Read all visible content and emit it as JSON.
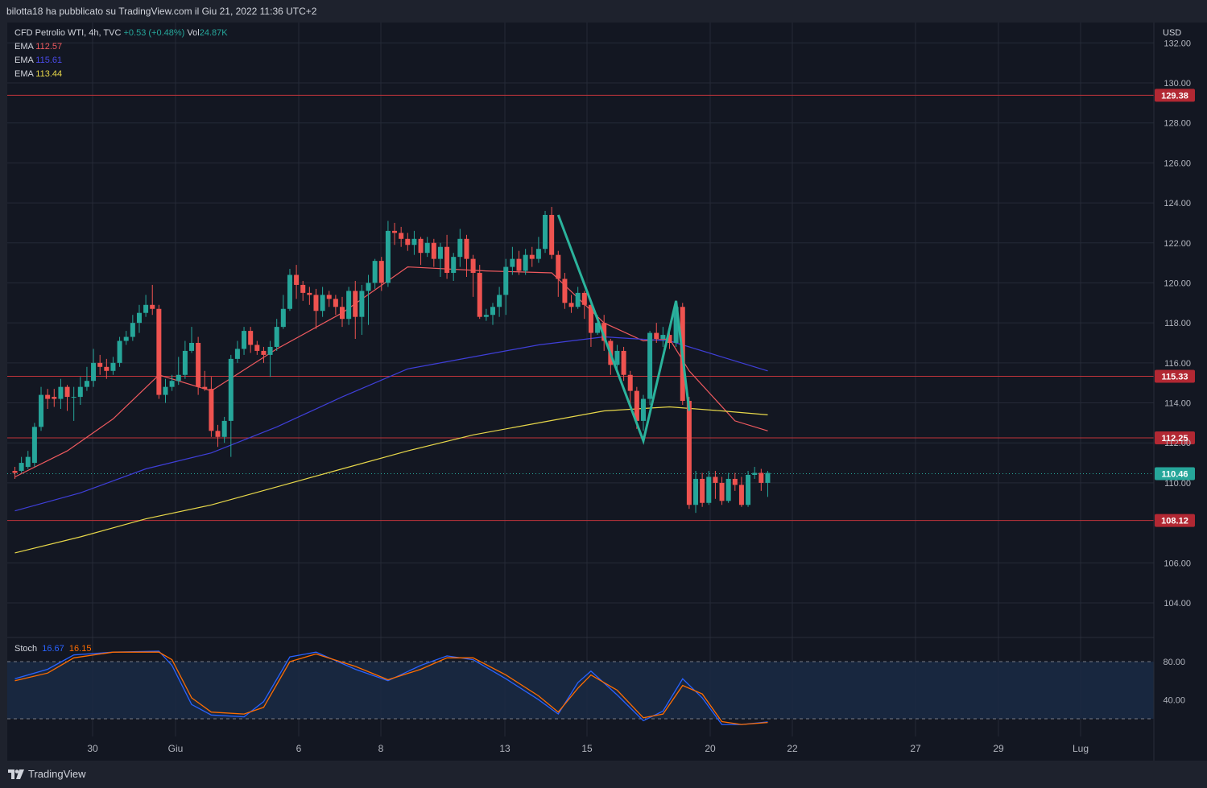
{
  "header": {
    "publish_text": "bilotta18 ha pubblicato su TradingView.com il Giu 21, 2022 11:36 UTC+2"
  },
  "legend": {
    "symbol": "CFD Petrolio WTI, 4h, TVC",
    "change": "+0.53 (+0.48%)",
    "vol_label": "Vol",
    "vol_value": "24.87K",
    "ema1_label": "EMA",
    "ema1_value": "112.57",
    "ema2_label": "EMA",
    "ema2_value": "115.61",
    "ema3_label": "EMA",
    "ema3_value": "113.44"
  },
  "stoch": {
    "label": "Stoch",
    "k": "16.67",
    "d": "16.15"
  },
  "footer": {
    "brand": "TradingView"
  },
  "colors": {
    "bg": "#131722",
    "frame": "#1e222d",
    "grid": "#252a37",
    "up": "#26a69a",
    "down": "#ef5350",
    "ema1": "#f05a5f",
    "ema2": "#3f3fd9",
    "ema3": "#e8d84a",
    "hline": "#c0343b",
    "stoch_k": "#2962ff",
    "stoch_d": "#ff6d00",
    "text": "#b2b5be"
  },
  "chart_data": {
    "type": "candlestick",
    "currency": "USD",
    "y_ticks": [
      "132.00",
      "130.00",
      "128.00",
      "126.00",
      "124.00",
      "122.00",
      "120.00",
      "118.00",
      "116.00",
      "114.00",
      "112.00",
      "110.00",
      "106.00",
      "104.00"
    ],
    "x_ticks": [
      "30",
      "Giu",
      "6",
      "8",
      "13",
      "15",
      "20",
      "22",
      "27",
      "29",
      "Lug"
    ],
    "horizontal_levels": [
      {
        "value": 129.38,
        "label": "129.38"
      },
      {
        "value": 115.33,
        "label": "115.33"
      },
      {
        "value": 112.25,
        "label": "112.25"
      },
      {
        "value": 108.12,
        "label": "108.12"
      }
    ],
    "last_price": {
      "value": 110.46,
      "label": "110.46"
    },
    "candles": [
      [
        110.6,
        110.5,
        110.8,
        110.2
      ],
      [
        110.6,
        111.0,
        111.3,
        110.5
      ],
      [
        110.8,
        111.3,
        111.6,
        110.7
      ],
      [
        111.0,
        112.8,
        113.0,
        110.8
      ],
      [
        112.8,
        114.4,
        114.8,
        112.6
      ],
      [
        114.4,
        114.2,
        114.7,
        113.7
      ],
      [
        114.3,
        114.2,
        114.7,
        113.8
      ],
      [
        114.2,
        114.8,
        115.2,
        113.7
      ],
      [
        114.8,
        114.3,
        114.9,
        113.6
      ],
      [
        114.3,
        114.3,
        114.8,
        113.1
      ],
      [
        114.3,
        114.8,
        115.3,
        113.9
      ],
      [
        114.8,
        115.1,
        115.8,
        114.6
      ],
      [
        115.1,
        116.0,
        116.7,
        114.8
      ],
      [
        116.0,
        115.8,
        116.4,
        115.4
      ],
      [
        115.8,
        115.6,
        116.2,
        115.2
      ],
      [
        115.6,
        116.0,
        116.3,
        115.4
      ],
      [
        116.0,
        117.1,
        117.3,
        115.8
      ],
      [
        117.1,
        117.3,
        117.6,
        116.9
      ],
      [
        117.3,
        118.0,
        118.4,
        117.1
      ],
      [
        118.0,
        118.5,
        118.9,
        117.5
      ],
      [
        118.5,
        118.9,
        119.4,
        118.3
      ],
      [
        118.9,
        118.7,
        119.9,
        118.4
      ],
      [
        118.7,
        114.4,
        118.9,
        114.2
      ],
      [
        114.4,
        114.8,
        115.2,
        114.0
      ],
      [
        114.8,
        115.1,
        115.4,
        114.6
      ],
      [
        115.1,
        115.4,
        116.3,
        114.9
      ],
      [
        115.4,
        116.6,
        117.1,
        115.2
      ],
      [
        116.6,
        117.0,
        117.8,
        116.5
      ],
      [
        117.0,
        114.8,
        117.3,
        114.4
      ],
      [
        114.8,
        114.7,
        115.6,
        114.6
      ],
      [
        114.7,
        112.6,
        115.3,
        112.3
      ],
      [
        112.6,
        112.3,
        112.9,
        111.8
      ],
      [
        112.3,
        113.1,
        113.3,
        112.0
      ],
      [
        113.1,
        116.2,
        116.4,
        111.3
      ],
      [
        116.2,
        116.7,
        117.1,
        116.0
      ],
      [
        116.7,
        117.6,
        117.8,
        116.4
      ],
      [
        117.6,
        116.9,
        117.8,
        116.5
      ],
      [
        116.9,
        116.6,
        117.1,
        116.4
      ],
      [
        116.6,
        116.4,
        116.8,
        116.0
      ],
      [
        116.4,
        116.8,
        117.1,
        115.3
      ],
      [
        116.8,
        117.8,
        118.2,
        116.6
      ],
      [
        117.8,
        118.7,
        119.4,
        117.7
      ],
      [
        118.7,
        120.4,
        120.7,
        118.6
      ],
      [
        120.4,
        119.9,
        120.9,
        119.2
      ],
      [
        119.9,
        119.5,
        120.1,
        119.1
      ],
      [
        119.5,
        119.4,
        119.8,
        118.9
      ],
      [
        119.4,
        118.6,
        119.7,
        117.7
      ],
      [
        118.6,
        119.4,
        119.8,
        118.3
      ],
      [
        119.4,
        119.2,
        119.6,
        118.8
      ],
      [
        119.2,
        118.8,
        119.4,
        118.4
      ],
      [
        118.8,
        118.2,
        119.3,
        117.8
      ],
      [
        118.2,
        119.6,
        119.8,
        117.9
      ],
      [
        119.6,
        118.3,
        120.1,
        117.2
      ],
      [
        118.3,
        119.6,
        119.9,
        117.4
      ],
      [
        119.6,
        120.0,
        120.4,
        117.9
      ],
      [
        120.0,
        121.1,
        121.2,
        119.7
      ],
      [
        121.1,
        120.0,
        121.3,
        119.6
      ],
      [
        120.0,
        122.6,
        123.1,
        119.8
      ],
      [
        122.6,
        122.5,
        123.0,
        121.9
      ],
      [
        122.5,
        122.2,
        122.8,
        121.8
      ],
      [
        122.2,
        121.9,
        122.5,
        121.6
      ],
      [
        121.9,
        122.2,
        122.6,
        121.4
      ],
      [
        122.2,
        121.5,
        122.3,
        120.9
      ],
      [
        121.5,
        122.0,
        122.3,
        121.3
      ],
      [
        122.0,
        121.2,
        122.2,
        120.8
      ],
      [
        121.2,
        121.8,
        122.0,
        120.3
      ],
      [
        121.8,
        120.5,
        122.4,
        120.2
      ],
      [
        120.5,
        121.3,
        121.5,
        120.1
      ],
      [
        121.3,
        122.2,
        122.7,
        120.8
      ],
      [
        122.2,
        121.2,
        122.4,
        120.3
      ],
      [
        121.2,
        120.5,
        121.4,
        119.3
      ],
      [
        120.5,
        118.3,
        120.9,
        118.2
      ],
      [
        118.3,
        118.4,
        118.7,
        118.1
      ],
      [
        118.4,
        118.8,
        119.0,
        117.9
      ],
      [
        118.8,
        119.4,
        119.8,
        118.3
      ],
      [
        119.4,
        120.8,
        121.2,
        118.4
      ],
      [
        120.8,
        121.2,
        121.8,
        120.4
      ],
      [
        121.2,
        120.6,
        121.6,
        120.4
      ],
      [
        120.6,
        121.4,
        121.7,
        120.4
      ],
      [
        121.4,
        121.2,
        121.8,
        120.8
      ],
      [
        121.2,
        121.7,
        122.3,
        121.0
      ],
      [
        121.7,
        123.4,
        123.6,
        121.5
      ],
      [
        123.4,
        121.4,
        123.8,
        121.2
      ],
      [
        121.4,
        120.2,
        121.6,
        119.3
      ],
      [
        120.2,
        119.0,
        120.5,
        118.7
      ],
      [
        119.0,
        118.8,
        119.4,
        118.5
      ],
      [
        118.8,
        119.5,
        119.8,
        118.7
      ],
      [
        119.5,
        118.9,
        119.6,
        118.2
      ],
      [
        118.9,
        117.5,
        119.2,
        116.8
      ],
      [
        117.5,
        118.0,
        118.4,
        117.4
      ],
      [
        118.0,
        117.1,
        118.4,
        116.6
      ],
      [
        117.1,
        115.9,
        117.2,
        115.4
      ],
      [
        115.9,
        116.6,
        116.9,
        115.5
      ],
      [
        116.6,
        115.4,
        116.8,
        115.1
      ],
      [
        115.4,
        114.6,
        115.6,
        113.9
      ],
      [
        114.6,
        113.1,
        114.8,
        112.7
      ],
      [
        113.1,
        114.2,
        114.4,
        112.6
      ],
      [
        114.2,
        117.5,
        117.6,
        113.9
      ],
      [
        117.5,
        117.2,
        118.0,
        117.0
      ],
      [
        117.2,
        117.4,
        117.8,
        116.8
      ],
      [
        117.4,
        117.0,
        117.7,
        116.7
      ],
      [
        117.0,
        118.8,
        119.0,
        116.8
      ],
      [
        118.8,
        114.1,
        119.0,
        113.9
      ],
      [
        114.1,
        108.9,
        114.3,
        108.7
      ],
      [
        108.9,
        110.2,
        110.6,
        108.5
      ],
      [
        110.2,
        109.0,
        110.5,
        108.8
      ],
      [
        109.0,
        110.3,
        110.6,
        108.9
      ],
      [
        110.3,
        110.0,
        110.6,
        109.2
      ],
      [
        110.0,
        109.1,
        110.3,
        108.9
      ],
      [
        109.1,
        110.2,
        110.5,
        109.0
      ],
      [
        110.2,
        109.9,
        110.5,
        109.6
      ],
      [
        109.9,
        108.9,
        110.3,
        108.8
      ],
      [
        108.9,
        110.4,
        110.6,
        108.8
      ],
      [
        110.4,
        110.5,
        110.8,
        110.2
      ],
      [
        110.5,
        110.0,
        110.7,
        109.6
      ],
      [
        110.0,
        110.5,
        110.6,
        109.3
      ]
    ],
    "ema_series": [
      {
        "name": "EMA",
        "value_label": "112.57",
        "points": [
          [
            0,
            110.3
          ],
          [
            8,
            111.6
          ],
          [
            15,
            113.2
          ],
          [
            22,
            115.4
          ],
          [
            30,
            114.6
          ],
          [
            40,
            116.7
          ],
          [
            50,
            118.5
          ],
          [
            60,
            120.8
          ],
          [
            72,
            120.6
          ],
          [
            82,
            120.5
          ],
          [
            90,
            118.0
          ],
          [
            96,
            117.1
          ],
          [
            100,
            117.2
          ],
          [
            103,
            115.6
          ],
          [
            110,
            113.1
          ],
          [
            115,
            112.6
          ]
        ]
      },
      {
        "name": "EMA",
        "value_label": "115.61",
        "points": [
          [
            0,
            108.6
          ],
          [
            10,
            109.5
          ],
          [
            20,
            110.7
          ],
          [
            30,
            111.5
          ],
          [
            40,
            112.8
          ],
          [
            50,
            114.3
          ],
          [
            60,
            115.7
          ],
          [
            70,
            116.3
          ],
          [
            80,
            116.9
          ],
          [
            90,
            117.3
          ],
          [
            100,
            117.1
          ],
          [
            108,
            116.3
          ],
          [
            115,
            115.6
          ]
        ]
      },
      {
        "name": "EMA",
        "value_label": "113.44",
        "points": [
          [
            0,
            106.5
          ],
          [
            10,
            107.3
          ],
          [
            20,
            108.2
          ],
          [
            30,
            108.9
          ],
          [
            40,
            109.8
          ],
          [
            50,
            110.7
          ],
          [
            60,
            111.6
          ],
          [
            70,
            112.4
          ],
          [
            80,
            113.0
          ],
          [
            90,
            113.6
          ],
          [
            100,
            113.8
          ],
          [
            108,
            113.6
          ],
          [
            115,
            113.4
          ]
        ]
      }
    ],
    "pattern_zigzag": [
      [
        83,
        123.4
      ],
      [
        96,
        112.1
      ],
      [
        101,
        119.1
      ],
      [
        103,
        113.6
      ]
    ],
    "stoch_ticks": [
      "80.00",
      "40.00"
    ],
    "stoch_bands": [
      80,
      20
    ],
    "stoch_k": [
      [
        0,
        62
      ],
      [
        5,
        72
      ],
      [
        9,
        87
      ],
      [
        15,
        90
      ],
      [
        22,
        91
      ],
      [
        24,
        76
      ],
      [
        27,
        35
      ],
      [
        30,
        24
      ],
      [
        35,
        22
      ],
      [
        38,
        38
      ],
      [
        42,
        85
      ],
      [
        46,
        90
      ],
      [
        52,
        72
      ],
      [
        57,
        60
      ],
      [
        62,
        76
      ],
      [
        66,
        86
      ],
      [
        70,
        82
      ],
      [
        75,
        62
      ],
      [
        80,
        40
      ],
      [
        83,
        25
      ],
      [
        86,
        58
      ],
      [
        88,
        70
      ],
      [
        92,
        45
      ],
      [
        96,
        18
      ],
      [
        99,
        28
      ],
      [
        102,
        62
      ],
      [
        105,
        42
      ],
      [
        108,
        14
      ],
      [
        111,
        14
      ],
      [
        115,
        16.67
      ]
    ],
    "stoch_d": [
      [
        0,
        60
      ],
      [
        5,
        68
      ],
      [
        9,
        84
      ],
      [
        15,
        90
      ],
      [
        22,
        90
      ],
      [
        24,
        82
      ],
      [
        27,
        42
      ],
      [
        30,
        27
      ],
      [
        35,
        25
      ],
      [
        38,
        32
      ],
      [
        42,
        80
      ],
      [
        46,
        88
      ],
      [
        52,
        75
      ],
      [
        57,
        61
      ],
      [
        62,
        72
      ],
      [
        66,
        84
      ],
      [
        70,
        84
      ],
      [
        75,
        66
      ],
      [
        80,
        44
      ],
      [
        83,
        27
      ],
      [
        86,
        52
      ],
      [
        88,
        66
      ],
      [
        92,
        50
      ],
      [
        96,
        21
      ],
      [
        99,
        25
      ],
      [
        102,
        55
      ],
      [
        105,
        46
      ],
      [
        108,
        17
      ],
      [
        111,
        14
      ],
      [
        115,
        16.15
      ]
    ]
  }
}
